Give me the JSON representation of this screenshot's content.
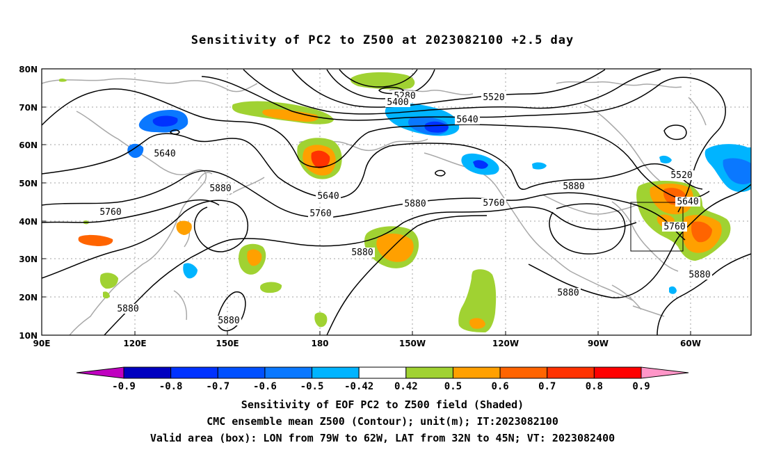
{
  "title": "Sensitivity of PC2 to Z500 at 2023082100 +2.5 day",
  "lat_ticks": [
    "80N",
    "70N",
    "60N",
    "50N",
    "40N",
    "30N",
    "20N",
    "10N"
  ],
  "lon_ticks": [
    "90E",
    "120E",
    "150E",
    "180",
    "150W",
    "120W",
    "90W",
    "60W"
  ],
  "contour_labels": [
    {
      "text": "5280"
    },
    {
      "text": "5400"
    },
    {
      "text": "5520"
    },
    {
      "text": "5640"
    },
    {
      "text": "5640"
    },
    {
      "text": "5640"
    },
    {
      "text": "5880"
    },
    {
      "text": "5760"
    },
    {
      "text": "5760"
    },
    {
      "text": "5880"
    },
    {
      "text": "5880"
    },
    {
      "text": "5760"
    },
    {
      "text": "5880"
    },
    {
      "text": "5520"
    },
    {
      "text": "5640"
    },
    {
      "text": "5760"
    },
    {
      "text": "5880"
    },
    {
      "text": "5880"
    },
    {
      "text": "5880"
    },
    {
      "text": "5880"
    }
  ],
  "colorbar": {
    "labels": [
      "-0.9",
      "-0.8",
      "-0.7",
      "-0.6",
      "-0.5",
      "-0.42",
      "0.42",
      "0.5",
      "0.6",
      "0.7",
      "0.8",
      "0.9"
    ],
    "colors": [
      "#c000c0",
      "#0000c0",
      "#0032ff",
      "#0050ff",
      "#0a78ff",
      "#00b4ff",
      "#ffffff",
      "#a0d232",
      "#ffa000",
      "#ff6400",
      "#ff3200",
      "#ff0000",
      "#ff96c8"
    ]
  },
  "captions": {
    "line1": "Sensitivity of EOF PC2 to Z500 field (Shaded)",
    "line2": "CMC ensemble mean Z500 (Contour); unit(m); IT:2023082100",
    "line3": "Valid area (box): LON from 79W to 62W, LAT from 32N to 45N; VT: 2023082400"
  }
}
